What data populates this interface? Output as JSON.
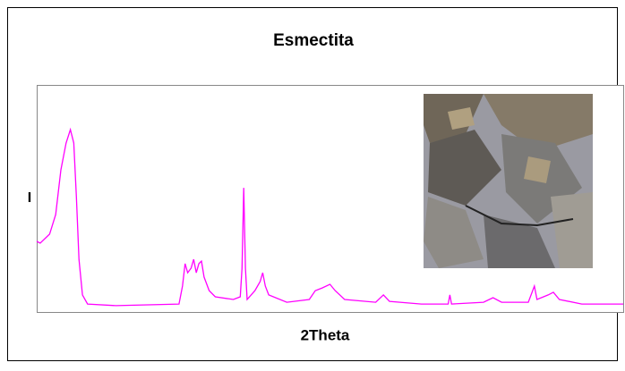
{
  "chart_data": {
    "type": "line",
    "title": "Esmectita",
    "x_label": "2Theta",
    "y_label": "I",
    "xlim": [
      2,
      70
    ],
    "ylim": [
      0,
      100
    ],
    "x": [
      2.0,
      2.4,
      3.5,
      4.2,
      4.8,
      5.4,
      5.9,
      6.3,
      6.6,
      6.9,
      7.3,
      7.9,
      11.2,
      18.5,
      18.9,
      19.2,
      19.5,
      19.9,
      20.2,
      20.5,
      20.8,
      21.1,
      21.4,
      22.0,
      22.7,
      24.8,
      25.6,
      25.8,
      26.0,
      26.2,
      26.4,
      27.3,
      27.9,
      28.2,
      28.5,
      28.9,
      31.0,
      33.6,
      34.3,
      35.1,
      36.0,
      36.6,
      37.7,
      41.3,
      42.2,
      42.9,
      46.6,
      49.7,
      49.9,
      50.1,
      53.8,
      54.9,
      55.9,
      59.0,
      59.7,
      60.0,
      61.3,
      61.9,
      62.6,
      65.2,
      70.0
    ],
    "series": [
      {
        "name": "Esmectita",
        "color": "#ff00ff",
        "values": [
          31.1,
          30.3,
          34.3,
          42.9,
          62.6,
          74.4,
          80.3,
          74.4,
          50.8,
          23.2,
          7.5,
          3.5,
          2.8,
          3.5,
          11.4,
          21.3,
          17.3,
          19.3,
          23.2,
          17.3,
          21.3,
          22.4,
          15.4,
          9.4,
          6.7,
          5.5,
          6.7,
          19.3,
          54.7,
          19.3,
          5.5,
          9.4,
          13.4,
          17.3,
          11.4,
          7.5,
          4.3,
          5.5,
          9.4,
          10.6,
          12.2,
          9.4,
          5.5,
          4.3,
          7.5,
          4.7,
          3.5,
          3.5,
          7.5,
          3.5,
          4.3,
          6.3,
          4.3,
          4.3,
          11.4,
          5.5,
          7.5,
          8.7,
          5.5,
          3.5,
          3.5
        ]
      }
    ]
  }
}
